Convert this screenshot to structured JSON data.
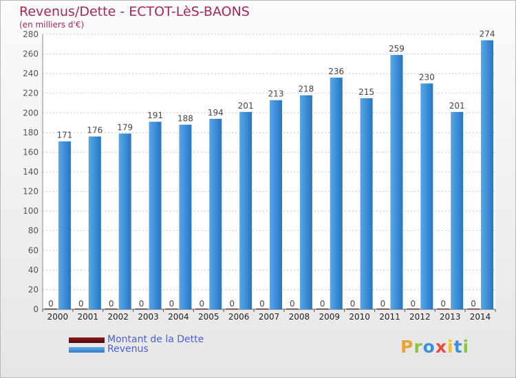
{
  "chart_data": {
    "type": "bar",
    "title": "Revenus/Dette - ECTOT-LèS-BAONS",
    "subtitle": "(en milliers d'€)",
    "categories": [
      "2000",
      "2001",
      "2002",
      "2003",
      "2004",
      "2005",
      "2006",
      "2007",
      "2008",
      "2009",
      "2010",
      "2011",
      "2012",
      "2013",
      "2014"
    ],
    "series": [
      {
        "name": "Montant de la Dette",
        "color": "#6b1212",
        "values": [
          0,
          0,
          0,
          0,
          0,
          0,
          0,
          0,
          0,
          0,
          0,
          0,
          0,
          0,
          0
        ]
      },
      {
        "name": "Revenus",
        "color": "#3d8fd6",
        "values": [
          171,
          176,
          179,
          191,
          188,
          194,
          201,
          213,
          218,
          236,
          215,
          259,
          230,
          201,
          274
        ]
      }
    ],
    "ylim": [
      0,
      280
    ],
    "yticks": [
      0,
      20,
      40,
      60,
      80,
      100,
      120,
      140,
      160,
      180,
      200,
      220,
      240,
      260,
      280
    ],
    "grid": true,
    "legend": "bottom-left"
  },
  "logo": {
    "text": "Proxiti"
  }
}
